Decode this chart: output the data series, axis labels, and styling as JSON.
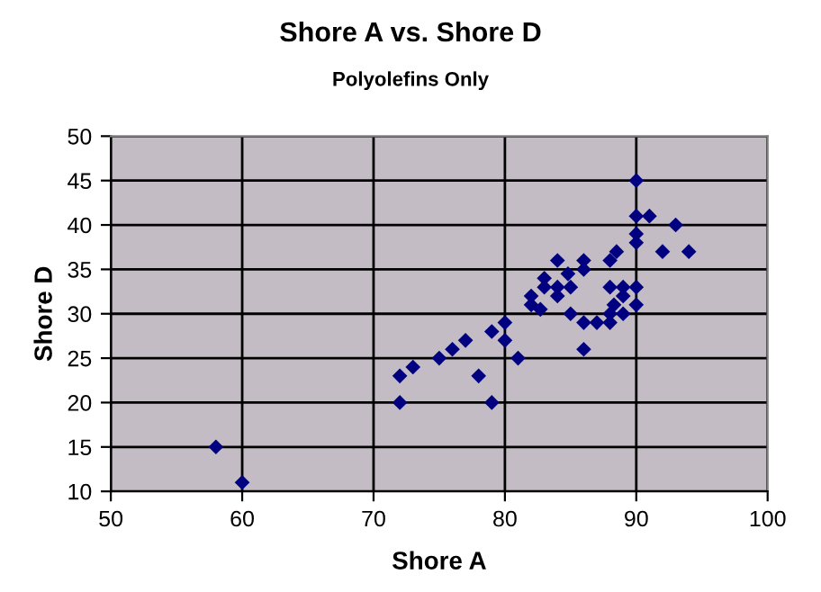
{
  "chart_data": {
    "type": "scatter",
    "title": "Shore A vs. Shore D",
    "subtitle": "Polyolefins Only",
    "xlabel": "Shore A",
    "ylabel": "Shore D",
    "x": [
      58,
      60,
      72,
      72,
      73,
      75,
      76,
      77,
      78,
      79,
      79,
      80,
      80,
      81,
      82,
      82,
      82.7,
      83,
      83,
      84,
      84,
      84,
      84.8,
      85,
      85,
      86,
      86,
      86,
      86,
      87,
      88,
      88,
      88,
      88,
      88.3,
      88.5,
      89,
      89,
      89,
      90,
      90,
      90,
      90,
      90,
      90,
      91,
      92,
      93,
      94
    ],
    "series": [
      {
        "color": "#000080",
        "values": [
          15,
          11,
          23,
          20,
          24,
          25,
          26,
          27,
          23,
          28,
          20,
          29,
          27,
          25,
          32,
          31,
          30.5,
          34,
          33,
          36,
          33,
          32,
          34.5,
          33,
          30,
          36,
          35,
          29,
          26,
          29,
          36,
          33,
          30,
          29,
          31,
          37,
          33,
          32,
          30,
          45,
          41,
          39,
          38,
          33,
          31,
          41,
          37,
          40,
          37
        ]
      }
    ],
    "xlim": [
      50,
      100
    ],
    "xticks": [
      50,
      60,
      70,
      80,
      90,
      100
    ],
    "ylim": [
      10,
      50
    ],
    "yticks": [
      10,
      15,
      20,
      25,
      30,
      35,
      40,
      45,
      50
    ],
    "grid": true,
    "marker": "diamond",
    "legend": false
  }
}
